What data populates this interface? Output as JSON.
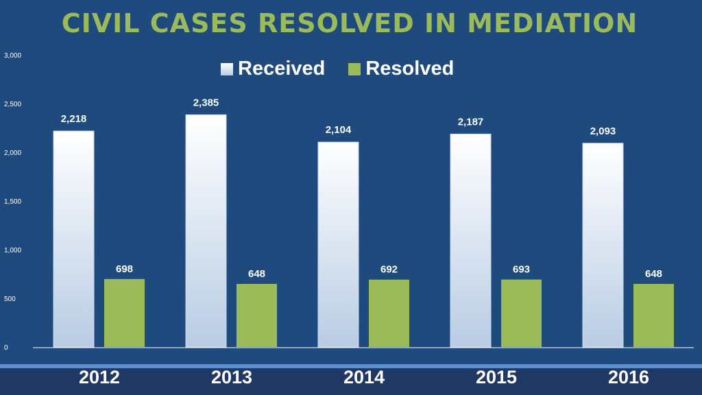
{
  "chart_data": {
    "type": "bar",
    "title": "CIVIL CASES RESOLVED IN MEDIATION",
    "categories": [
      "2012",
      "2013",
      "2014",
      "2015",
      "2016"
    ],
    "series": [
      {
        "name": "Received",
        "values": [
          2218,
          2385,
          2104,
          2187,
          2093
        ],
        "labels": [
          "2,218",
          "2,385",
          "2,104",
          "2,187",
          "2,093"
        ],
        "color": "#ffffff"
      },
      {
        "name": "Resolved",
        "values": [
          698,
          648,
          692,
          693,
          648
        ],
        "labels": [
          "698",
          "648",
          "692",
          "693",
          "648"
        ],
        "color": "#9bbb59"
      }
    ],
    "ylim": [
      0,
      3000
    ],
    "yticks": [
      0,
      500,
      1000,
      1500,
      2000,
      2500,
      3000
    ],
    "ytick_labels": [
      "0",
      "500",
      "1,000",
      "1,500",
      "2,000",
      "2,500",
      "3,000"
    ],
    "grid": false,
    "legend": "top-center"
  },
  "colors": {
    "background": "#1f4a7e",
    "title": "#9bbb59",
    "resolved": "#9bbb59",
    "received_top": "#ffffff",
    "received_bottom": "#b8cce4",
    "band": "#203864"
  }
}
